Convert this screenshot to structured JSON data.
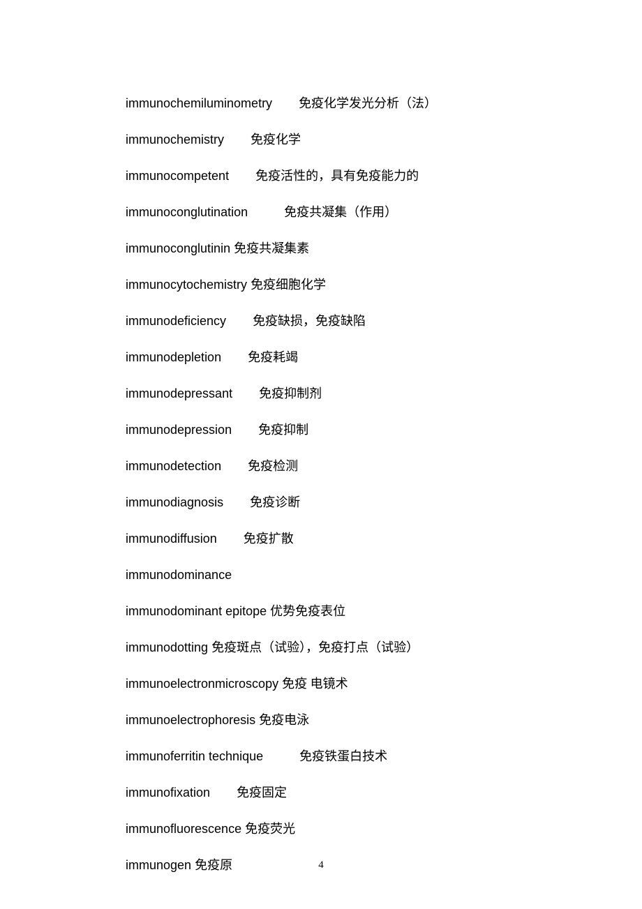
{
  "page_number": "4",
  "text_color": "#000000",
  "background_color": "#ffffff",
  "term_fontsize": 18,
  "entries": [
    {
      "term": "immunochemiluminometry",
      "def": "免疫化学发光分析（法）",
      "gap": "gap-md"
    },
    {
      "term": "immunochemistry",
      "def": "免疫化学",
      "gap": "gap-md"
    },
    {
      "term": "immunocompetent",
      "def": "免疫活性的，具有免疫能力的",
      "gap": "gap-md"
    },
    {
      "term": "immunoconglutination",
      "def": "免疫共凝集（作用）",
      "gap": "gap-lg"
    },
    {
      "term": "immunoconglutinin",
      "def": "免疫共凝集素",
      "gap": "gap-sm",
      "tight": true
    },
    {
      "term": "immunocytochemistry",
      "def": "免疫细胞化学",
      "gap": "gap-sm",
      "tight": true
    },
    {
      "term": "immunodeficiency",
      "def": "免疫缺损，免疫缺陷",
      "gap": "gap-md"
    },
    {
      "term": "immunodepletion",
      "def": "免疫耗竭",
      "gap": "gap-md"
    },
    {
      "term": "immunodepressant",
      "def": "免疫抑制剂",
      "gap": "gap-md"
    },
    {
      "term": "immunodepression",
      "def": "免疫抑制",
      "gap": "gap-md"
    },
    {
      "term": "immunodetection",
      "def": "免疫检测",
      "gap": "gap-md"
    },
    {
      "term": "immunodiagnosis",
      "def": "免疫诊断",
      "gap": "gap-md"
    },
    {
      "term": "immunodiffusion",
      "def": "免疫扩散",
      "gap": "gap-md"
    },
    {
      "term": "immunodominance",
      "def": "",
      "gap": "gap-sm"
    },
    {
      "term": "immunodominant epitope",
      "def": "优势免疫表位",
      "gap": "gap-sm",
      "tight": true
    },
    {
      "term": "immunodotting",
      "def": "免疫斑点（试验），免疫打点（试验）",
      "gap": "gap-sm",
      "tight": true
    },
    {
      "term": "immunoelectronmicroscopy",
      "def": "免疫  电镜术",
      "gap": "gap-sm",
      "tight": true
    },
    {
      "term": "immunoelectrophoresis",
      "def": "免疫电泳",
      "gap": "gap-sm",
      "tight": true
    },
    {
      "term": "immunoferritin technique",
      "def": "免疫铁蛋白技术",
      "gap": "gap-lg"
    },
    {
      "term": "immunofixation",
      "def": "免疫固定",
      "gap": "gap-md"
    },
    {
      "term": "immunofluorescence",
      "def": "免疫荧光",
      "gap": "gap-sm",
      "tight": true
    },
    {
      "term": "immunogen",
      "def": "免疫原",
      "gap": "gap-sm",
      "tight": true
    }
  ]
}
